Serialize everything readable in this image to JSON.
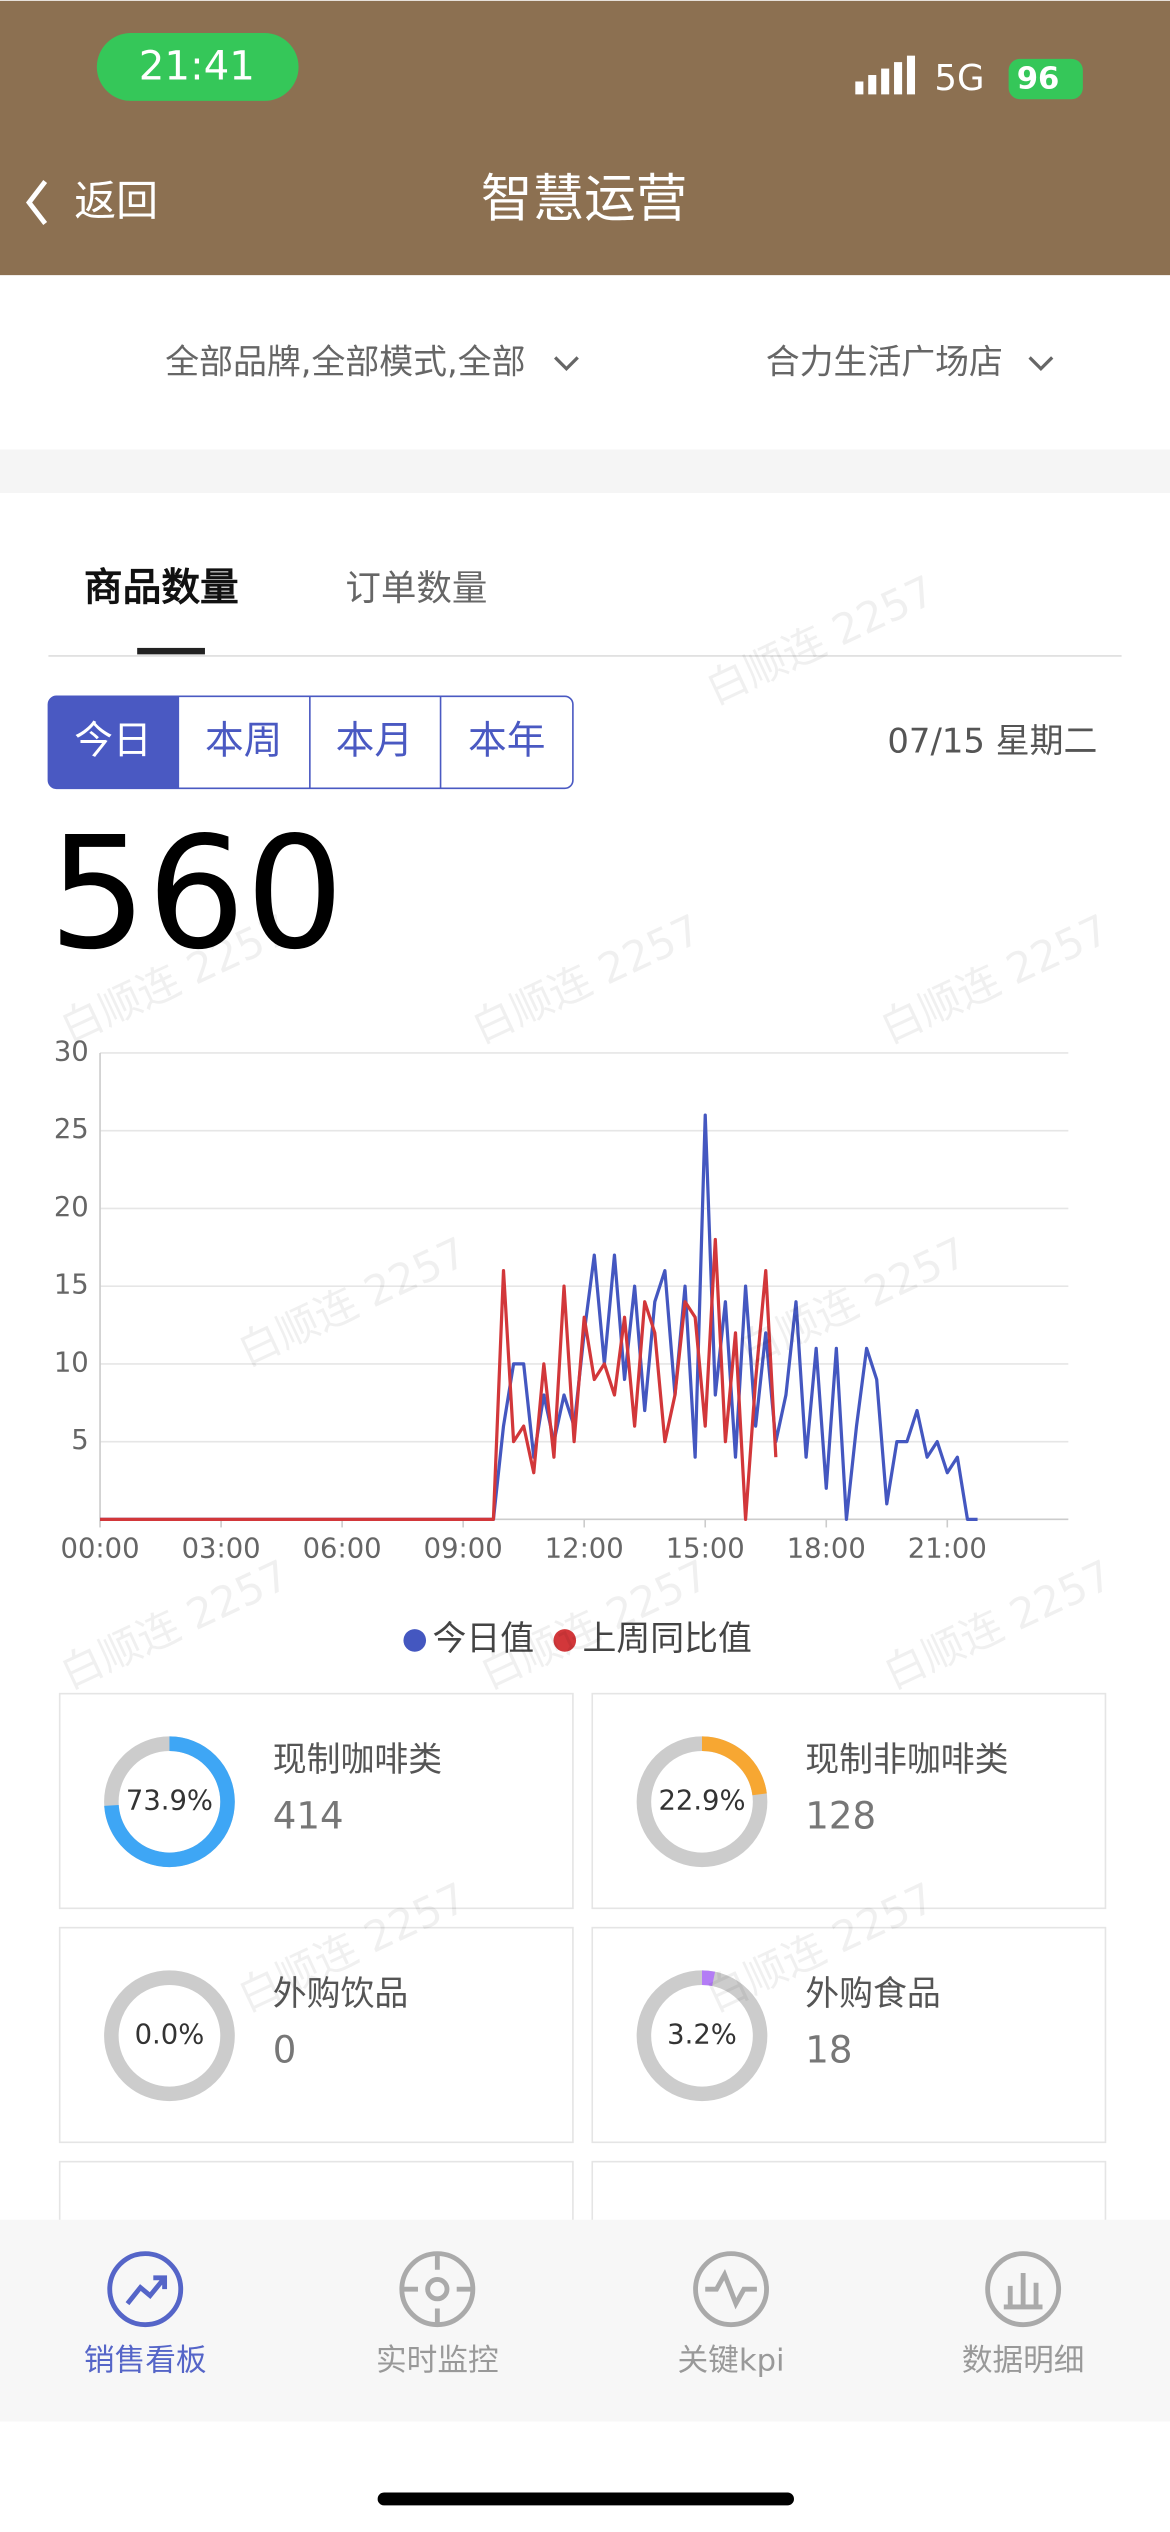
{
  "status_bar": {
    "time": "21:41",
    "network": "5G",
    "battery": "96"
  },
  "nav": {
    "back": "返回",
    "title": "智慧运营"
  },
  "filters": [
    "全部品牌,全部模式,全部",
    "合力生活广场店"
  ],
  "tabs": [
    "商品数量",
    "订单数量"
  ],
  "periods": [
    "今日",
    "本周",
    "本月",
    "本年"
  ],
  "date": "07/15 星期二",
  "total": 560,
  "watermark": "白顺连 2257",
  "chart_data": {
    "type": "line",
    "x": [
      0,
      9.75,
      10,
      10.25,
      10.5,
      10.75,
      11,
      11.25,
      11.5,
      11.75,
      12,
      12.25,
      12.5,
      12.75,
      13,
      13.25,
      13.5,
      13.75,
      14,
      14.25,
      14.5,
      14.75,
      15,
      15.25,
      15.5,
      15.75,
      16,
      16.25,
      16.5,
      16.75,
      17,
      17.25,
      17.5,
      17.75,
      18,
      18.25,
      18.5,
      18.75,
      19,
      19.25,
      19.5,
      19.75,
      20,
      20.25,
      20.5,
      20.75,
      21,
      21.25,
      21.5,
      21.75
    ],
    "series": [
      {
        "name": "今日值",
        "color": "#4457c0",
        "values": [
          0,
          0,
          6,
          10,
          10,
          4,
          8,
          5,
          8,
          6,
          12,
          17,
          10,
          17,
          9,
          15,
          7,
          14,
          16,
          8,
          15,
          4,
          26,
          8,
          14,
          4,
          15,
          6,
          12,
          5,
          8,
          14,
          4,
          11,
          2,
          11,
          0,
          6,
          11,
          9,
          1,
          5,
          5,
          7,
          4,
          5,
          3,
          4,
          0,
          0
        ]
      },
      {
        "name": "上周同比值",
        "color": "#d2373a",
        "values": [
          0,
          0,
          16,
          5,
          6,
          3,
          10,
          4,
          15,
          5,
          13,
          9,
          10,
          8,
          13,
          6,
          14,
          12,
          5,
          8,
          14,
          13,
          6,
          18,
          5,
          12,
          0,
          9,
          16,
          4,
          null,
          null,
          null,
          null,
          null,
          null,
          null,
          null,
          null,
          null,
          null,
          null,
          null,
          null,
          null,
          null,
          null,
          null,
          null,
          null
        ]
      }
    ],
    "xlim": [
      0,
      24
    ],
    "ylim": [
      0,
      30
    ],
    "xticks": [
      {
        "value": 0,
        "label": "00:00"
      },
      {
        "value": 3,
        "label": "03:00"
      },
      {
        "value": 6,
        "label": "06:00"
      },
      {
        "value": 9,
        "label": "09:00"
      },
      {
        "value": 12,
        "label": "12:00"
      },
      {
        "value": 15,
        "label": "15:00"
      },
      {
        "value": 18,
        "label": "18:00"
      },
      {
        "value": 21,
        "label": "21:00"
      }
    ],
    "yticks": [
      5,
      10,
      15,
      20,
      25,
      30
    ],
    "grid": true,
    "legend": "bottom"
  },
  "categories": [
    {
      "name": "现制咖啡类",
      "count": 414,
      "share": 73.9,
      "share_label": "73.9%",
      "color": "#3ea6f5"
    },
    {
      "name": "现制非咖啡类",
      "count": 128,
      "share": 22.9,
      "share_label": "22.9%",
      "color": "#f7a732"
    },
    {
      "name": "外购饮品",
      "count": 0,
      "share": 0,
      "share_label": "0.0%",
      "color": "#b37cf5"
    },
    {
      "name": "外购食品",
      "count": 18,
      "share": 3.2,
      "share_label": "3.2%",
      "color": "#b37cf5"
    }
  ],
  "bottom_nav": [
    "销售看板",
    "实时监控",
    "关键kpi",
    "数据明细"
  ]
}
